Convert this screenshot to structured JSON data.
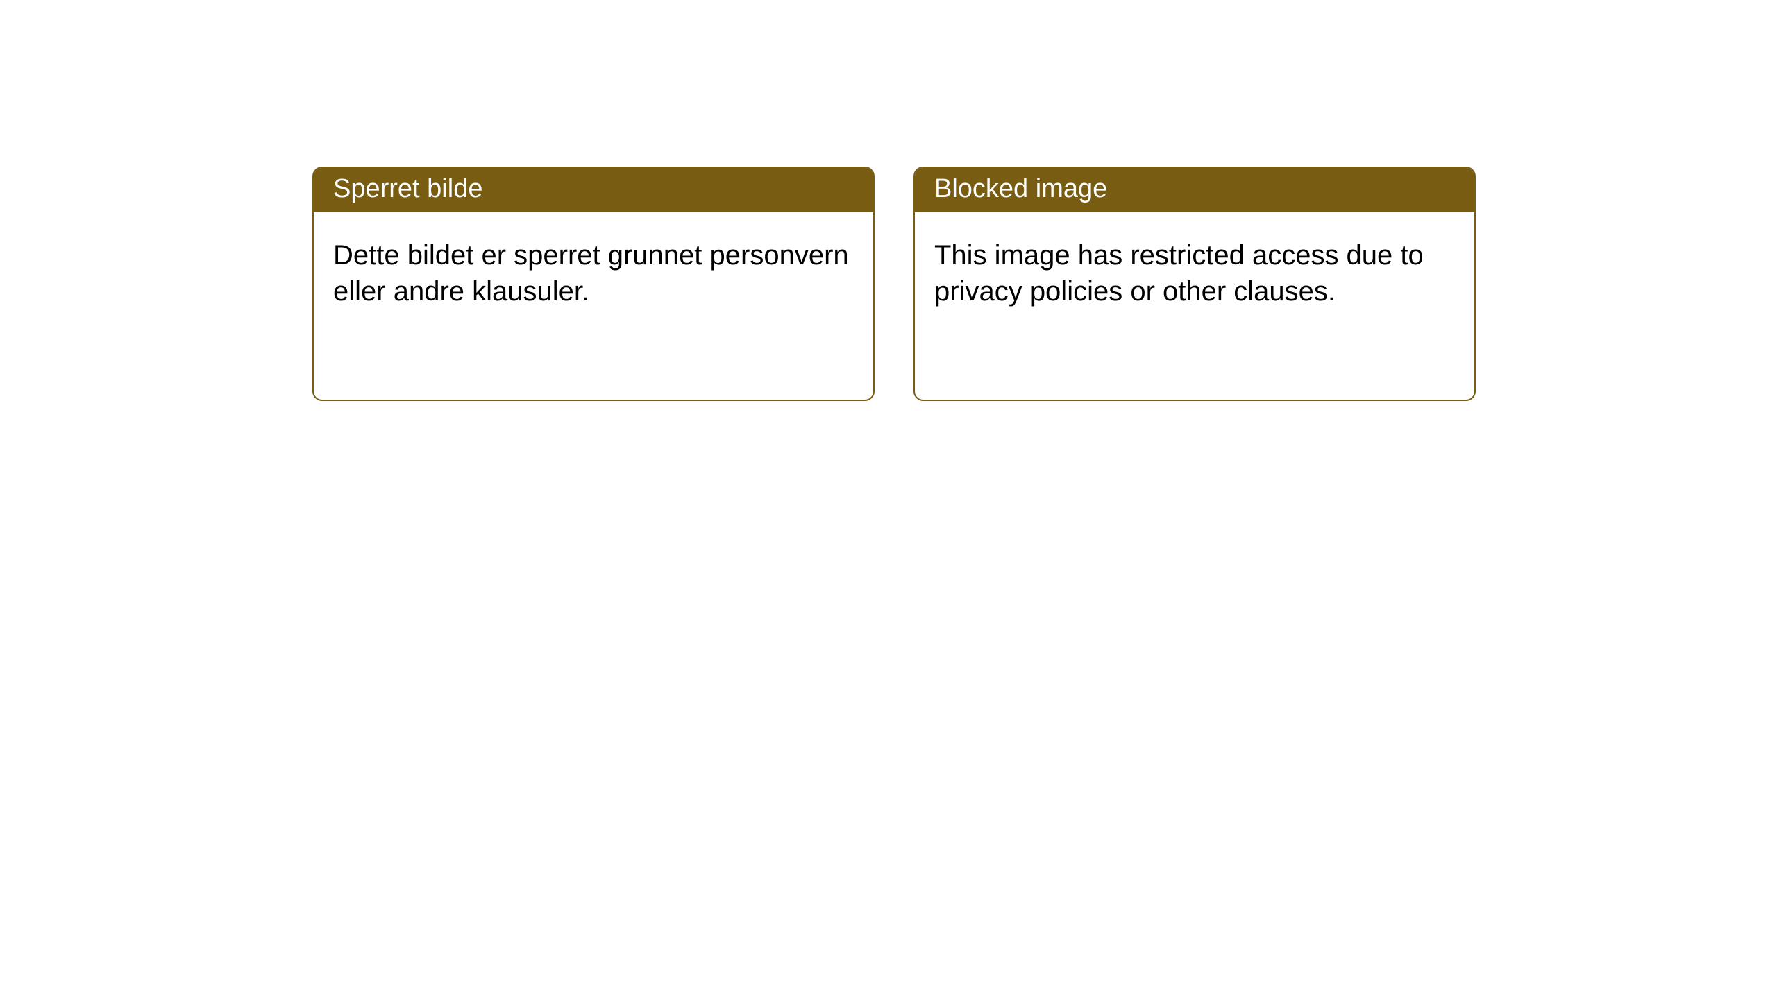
{
  "layout": {
    "background_color": "#ffffff",
    "card_border_color": "#785c12",
    "card_header_bg": "#785c12",
    "card_header_text_color": "#ffffff",
    "card_body_text_color": "#000000",
    "card_border_radius": 14,
    "header_fontsize": 38,
    "body_fontsize": 40
  },
  "cards": {
    "left": {
      "title": "Sperret bilde",
      "body": "Dette bildet er sperret grunnet personvern eller andre klausuler."
    },
    "right": {
      "title": "Blocked image",
      "body": "This image has restricted access due to privacy policies or other clauses."
    }
  }
}
